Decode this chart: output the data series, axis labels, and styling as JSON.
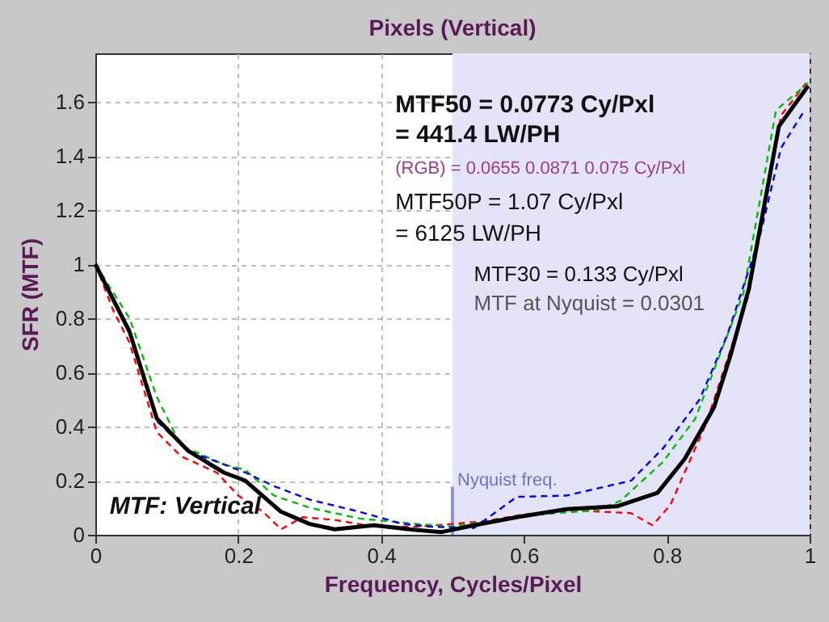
{
  "chart_data": {
    "type": "line",
    "title": "Pixels (Vertical)",
    "xlabel": "Frequency, Cycles/Pixel",
    "ylabel": "SFR (MTF)",
    "xlim": [
      0,
      1
    ],
    "xticks": [
      0,
      0.2,
      0.4,
      0.6,
      0.8,
      1
    ],
    "ylim": [
      0,
      1.78
    ],
    "yticks": [
      0,
      0.2,
      0.4,
      0.6,
      0.8,
      1,
      1.2,
      1.4,
      1.6
    ],
    "grid": true,
    "marker": "none",
    "bands": [
      {
        "axis": "x",
        "from": 0.5,
        "to": 1,
        "label": "Nyquist freq.",
        "color": "#e4e4f8"
      }
    ],
    "annotations": [
      "MTF50 = 0.0773 Cy/Pxl",
      "= 441.4 LW/PH",
      "(RGB) = 0.0655  0.0871  0.075 Cy/Pxl",
      "MTF50P = 1.07 Cy/Pxl",
      "= 6125 LW/PH",
      "MTF30 = 0.133 Cy/Pxl",
      "MTF at Nyquist = 0.0301",
      "MTF: Vertical"
    ],
    "series": [
      {
        "color": "#ff0000",
        "line_style": "dashed",
        "x": [
          0,
          0.025,
          0.048,
          0.086,
          0.12,
          0.17,
          0.2,
          0.235,
          0.26,
          0.29,
          0.335,
          0.39,
          0.45,
          0.5,
          0.545,
          0.6,
          0.67,
          0.75,
          0.78,
          0.805,
          0.855,
          0.915,
          0.96,
          0.995
        ],
        "values": [
          1.0,
          0.83,
          0.71,
          0.38,
          0.29,
          0.23,
          0.145,
          0.085,
          0.02,
          0.065,
          0.055,
          0.03,
          0.03,
          0.04,
          0.05,
          0.075,
          0.09,
          0.08,
          0.035,
          0.11,
          0.41,
          0.89,
          1.55,
          1.67
        ]
      },
      {
        "color": "#00c000",
        "line_style": "dashed",
        "x": [
          0,
          0.048,
          0.086,
          0.12,
          0.18,
          0.21,
          0.25,
          0.3,
          0.37,
          0.45,
          0.5,
          0.55,
          0.62,
          0.7,
          0.735,
          0.795,
          0.84,
          0.907,
          0.953,
          0.998
        ],
        "values": [
          1.0,
          0.8,
          0.51,
          0.33,
          0.26,
          0.24,
          0.145,
          0.1,
          0.06,
          0.04,
          0.03,
          0.05,
          0.075,
          0.09,
          0.125,
          0.27,
          0.43,
          0.89,
          1.57,
          1.67
        ]
      },
      {
        "color": "#0000ff",
        "line_style": "dashed",
        "x": [
          0,
          0.048,
          0.086,
          0.13,
          0.18,
          0.21,
          0.25,
          0.3,
          0.37,
          0.43,
          0.47,
          0.53,
          0.59,
          0.66,
          0.75,
          0.795,
          0.846,
          0.885,
          0.93,
          0.96,
          0.993
        ],
        "values": [
          1.0,
          0.76,
          0.42,
          0.31,
          0.26,
          0.23,
          0.18,
          0.13,
          0.085,
          0.04,
          0.03,
          0.025,
          0.14,
          0.145,
          0.2,
          0.32,
          0.5,
          0.74,
          1.1,
          1.43,
          1.57
        ]
      },
      {
        "color": "#000000",
        "line_style": "solid",
        "x": [
          0,
          0.048,
          0.086,
          0.13,
          0.18,
          0.21,
          0.26,
          0.3,
          0.335,
          0.39,
          0.44,
          0.485,
          0.53,
          0.59,
          0.66,
          0.73,
          0.787,
          0.825,
          0.866,
          0.89,
          0.915,
          0.957,
          0.998
        ],
        "values": [
          1.0,
          0.75,
          0.43,
          0.31,
          0.23,
          0.2,
          0.085,
          0.04,
          0.02,
          0.035,
          0.02,
          0.01,
          0.035,
          0.065,
          0.095,
          0.105,
          0.155,
          0.28,
          0.47,
          0.67,
          0.91,
          1.51,
          1.66
        ]
      }
    ]
  }
}
